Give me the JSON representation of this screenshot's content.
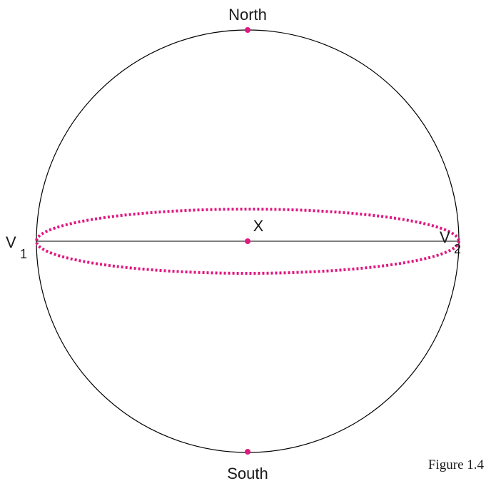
{
  "labels": {
    "north": "North",
    "south": "South",
    "center": "X"
  },
  "vertices": [
    {
      "letter": "V",
      "subscript": "1"
    },
    {
      "letter": "V",
      "subscript": "2"
    }
  ],
  "caption": "Figure 1.4"
}
